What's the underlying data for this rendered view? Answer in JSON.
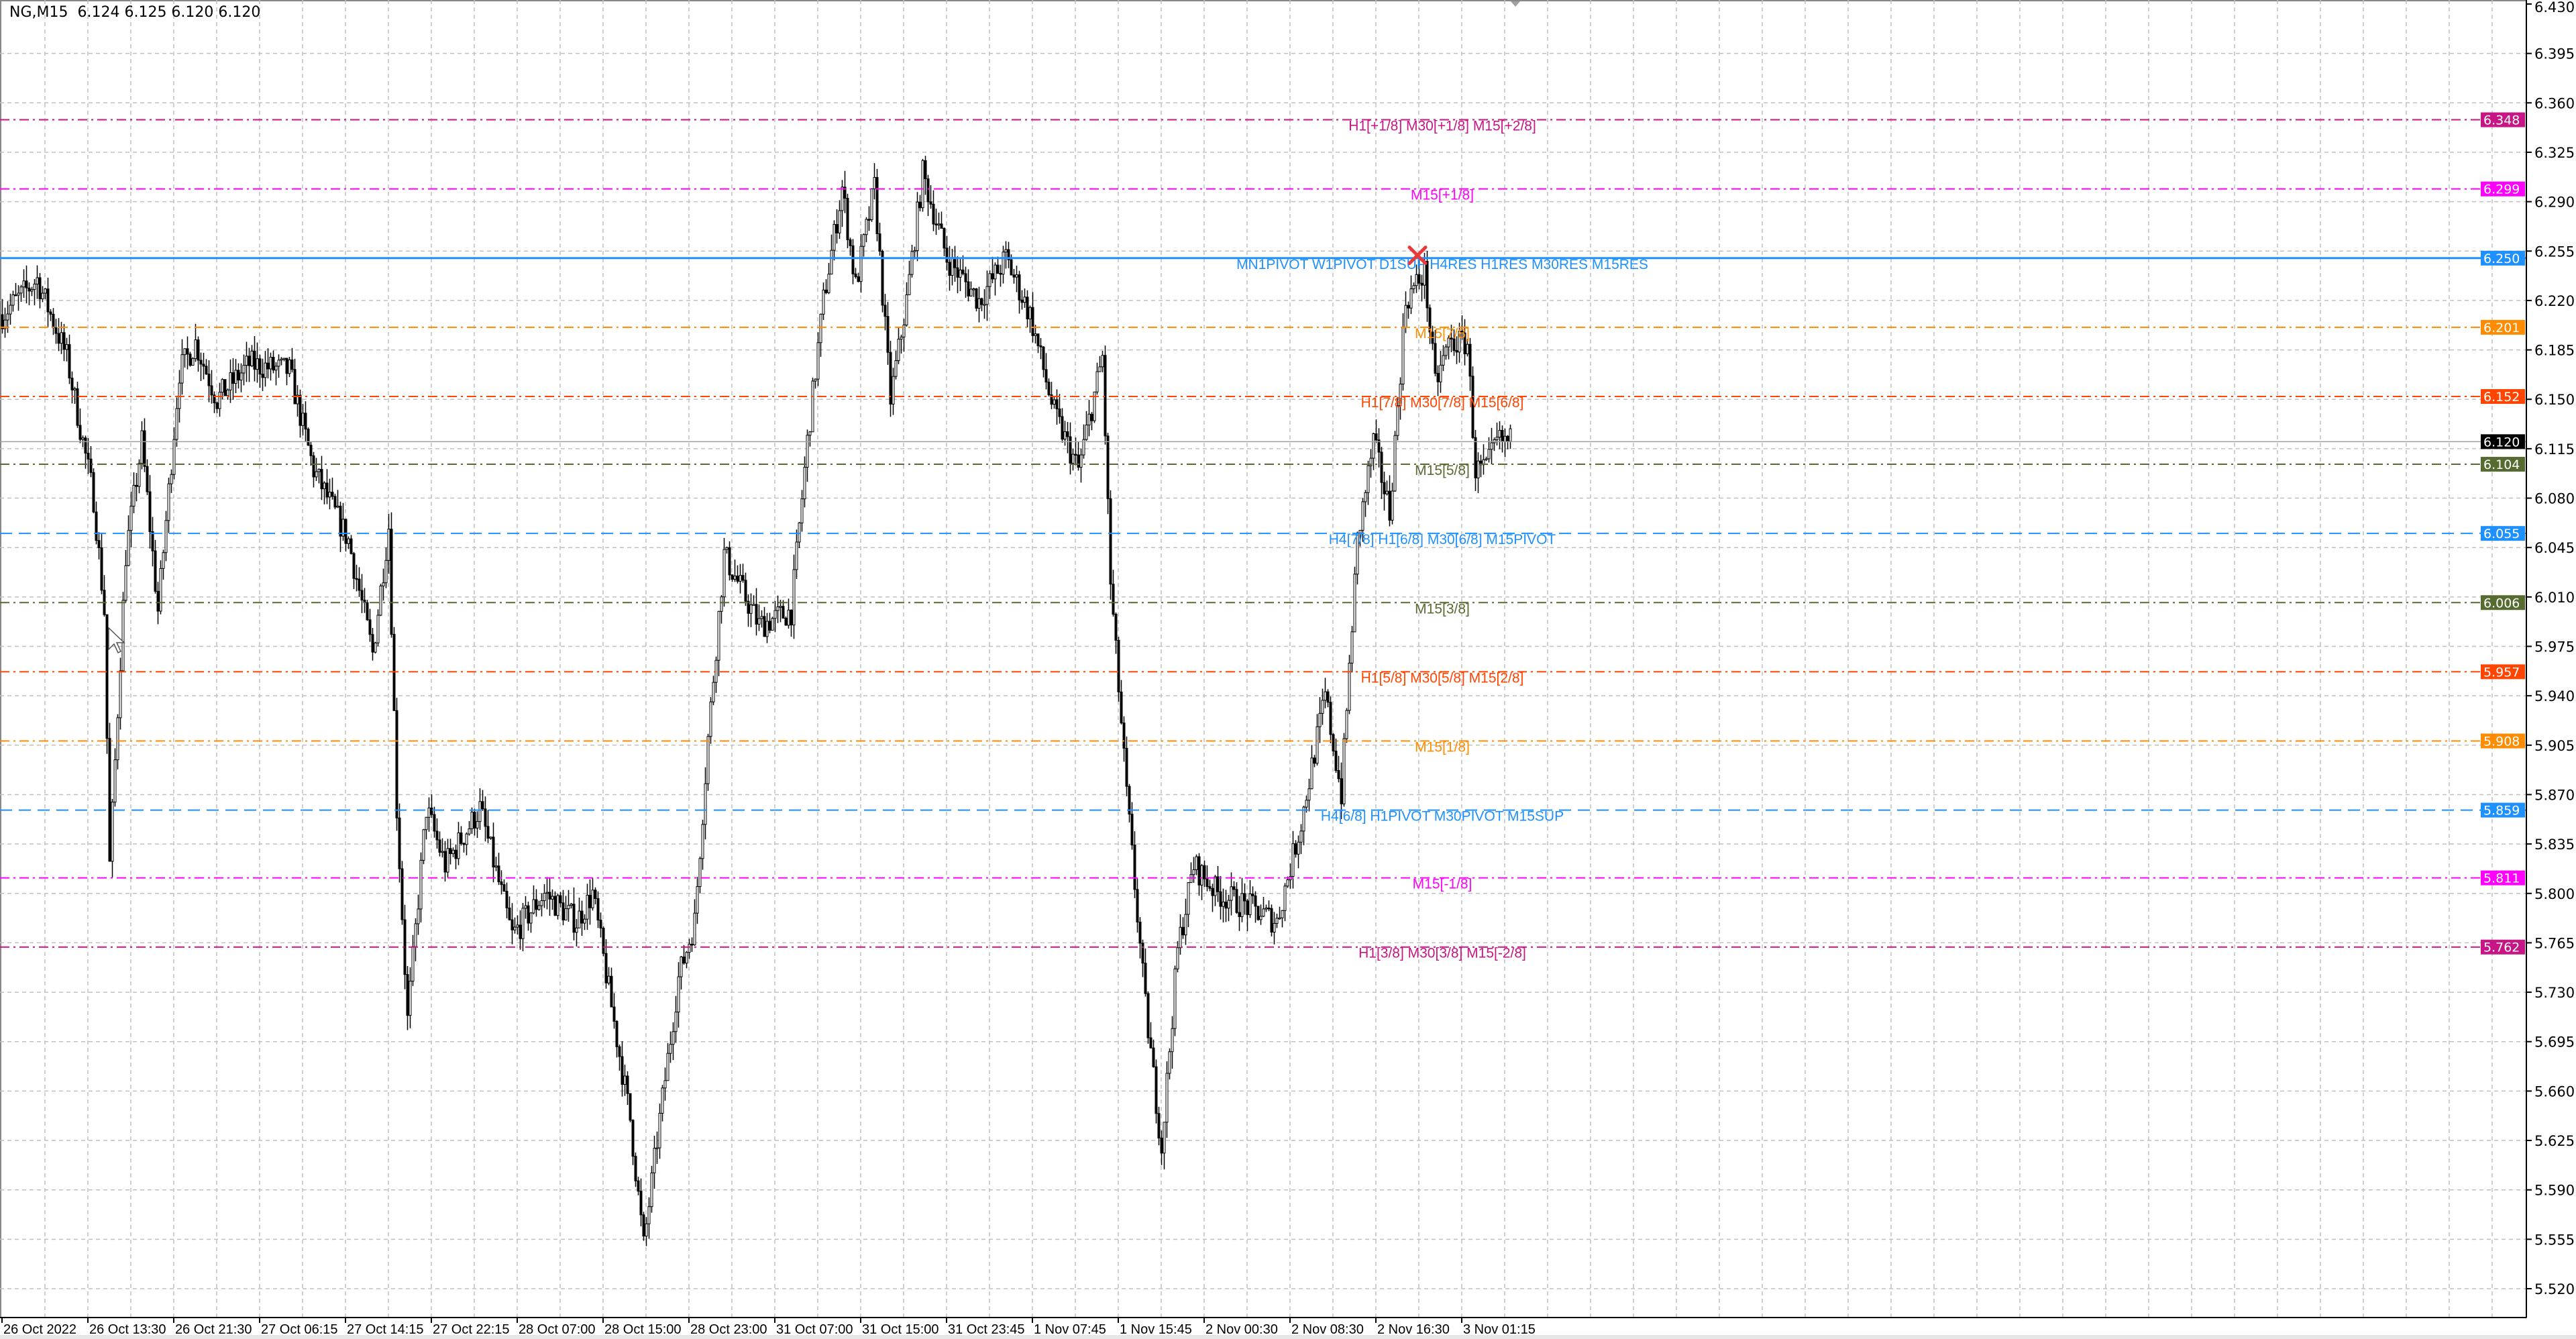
{
  "header": {
    "symbol": "NG,M15",
    "ohlc": "6.124 6.125 6.120 6.120"
  },
  "colors": {
    "background": "#ffffff",
    "grid": "#c0c0c0",
    "candle": "#000000",
    "axis": "#000000",
    "current_price_bg": "#000000",
    "marker": "#e8393b"
  },
  "chart_data": {
    "type": "candlestick",
    "timeframe": "M15",
    "ylim": [
      5.5,
      6.43
    ],
    "grid": true,
    "y_ticks": [
      "6.430",
      "6.395",
      "6.360",
      "6.325",
      "6.290",
      "6.255",
      "6.220",
      "6.185",
      "6.150",
      "6.115",
      "6.080",
      "6.045",
      "6.010",
      "5.975",
      "5.940",
      "5.905",
      "5.870",
      "5.835",
      "5.800",
      "5.765",
      "5.730",
      "5.695",
      "5.660",
      "5.625",
      "5.590",
      "5.555",
      "5.520"
    ],
    "x_ticks": [
      "26 Oct 2022",
      "26 Oct 13:30",
      "26 Oct 21:30",
      "27 Oct 06:15",
      "27 Oct 14:15",
      "27 Oct 22:15",
      "28 Oct 07:00",
      "28 Oct 15:00",
      "28 Oct 23:00",
      "31 Oct 07:00",
      "31 Oct 15:00",
      "31 Oct 23:45",
      "1 Nov 07:45",
      "1 Nov 15:45",
      "2 Nov 00:30",
      "2 Nov 08:30",
      "2 Nov 16:30",
      "3 Nov 01:15"
    ],
    "bars_per_x_tick": 32,
    "price_path": [
      [
        0,
        6.21
      ],
      [
        13,
        6.235
      ],
      [
        24,
        6.18
      ],
      [
        34,
        6.08
      ],
      [
        38,
        6.0
      ],
      [
        40,
        5.82
      ],
      [
        46,
        6.04
      ],
      [
        52,
        6.12
      ],
      [
        58,
        6.0
      ],
      [
        66,
        6.17
      ],
      [
        72,
        6.19
      ],
      [
        80,
        6.15
      ],
      [
        92,
        6.175
      ],
      [
        107,
        6.17
      ],
      [
        116,
        6.1
      ],
      [
        129,
        6.05
      ],
      [
        138,
        5.97
      ],
      [
        144,
        6.06
      ],
      [
        147,
        5.86
      ],
      [
        151,
        5.71
      ],
      [
        158,
        5.86
      ],
      [
        165,
        5.82
      ],
      [
        178,
        5.86
      ],
      [
        190,
        5.77
      ],
      [
        202,
        5.8
      ],
      [
        214,
        5.78
      ],
      [
        220,
        5.8
      ],
      [
        227,
        5.72
      ],
      [
        234,
        5.64
      ],
      [
        239,
        5.55
      ],
      [
        245,
        5.64
      ],
      [
        252,
        5.74
      ],
      [
        258,
        5.78
      ],
      [
        263,
        5.91
      ],
      [
        269,
        6.04
      ],
      [
        282,
        5.99
      ],
      [
        294,
        6.0
      ],
      [
        300,
        6.12
      ],
      [
        306,
        6.22
      ],
      [
        313,
        6.3
      ],
      [
        318,
        6.23
      ],
      [
        325,
        6.3
      ],
      [
        331,
        6.15
      ],
      [
        337,
        6.22
      ],
      [
        343,
        6.31
      ],
      [
        352,
        6.25
      ],
      [
        364,
        6.22
      ],
      [
        374,
        6.25
      ],
      [
        383,
        6.21
      ],
      [
        392,
        6.14
      ],
      [
        401,
        6.1
      ],
      [
        410,
        6.18
      ],
      [
        413,
        6.02
      ],
      [
        419,
        5.87
      ],
      [
        426,
        5.72
      ],
      [
        432,
        5.62
      ],
      [
        438,
        5.76
      ],
      [
        444,
        5.82
      ],
      [
        453,
        5.8
      ],
      [
        465,
        5.79
      ],
      [
        475,
        5.78
      ],
      [
        484,
        5.85
      ],
      [
        493,
        5.94
      ],
      [
        499,
        5.87
      ],
      [
        505,
        6.05
      ],
      [
        511,
        6.12
      ],
      [
        517,
        6.07
      ],
      [
        523,
        6.22
      ],
      [
        530,
        6.24
      ],
      [
        534,
        6.16
      ],
      [
        539,
        6.19
      ],
      [
        546,
        6.19
      ],
      [
        549,
        6.1
      ],
      [
        553,
        6.1
      ],
      [
        557,
        6.12
      ],
      [
        562,
        6.12
      ]
    ],
    "current_price": {
      "value": 6.12,
      "label": "6.120"
    },
    "levels": [
      {
        "price": 6.348,
        "label": "6.348",
        "text": "H1[+1/8] M30[+1/8] M15[+2/8]",
        "color": "#C71585",
        "style": "dashdot"
      },
      {
        "price": 6.299,
        "label": "6.299",
        "text": "M15[+1/8]",
        "color": "#FF00FF",
        "style": "dashdot"
      },
      {
        "price": 6.25,
        "label": "6.250",
        "text": "MN1PIVOT W1PIVOT D1SUP H4RES H1RES M30RES M15RES",
        "color": "#1E90FF",
        "style": "solid"
      },
      {
        "price": 6.201,
        "label": "6.201",
        "text": "M15[7/8]",
        "color": "#FF8C00",
        "style": "dashdot"
      },
      {
        "price": 6.152,
        "label": "6.152",
        "text": "H1[7/8] M30[7/8] M15[6/8]",
        "color": "#FF4500",
        "style": "dashdot"
      },
      {
        "price": 6.104,
        "label": "6.104",
        "text": "M15[5/8]",
        "color": "#556B2F",
        "style": "dashdot"
      },
      {
        "price": 6.055,
        "label": "6.055",
        "text": "H4[7/8] H1[6/8] M30[6/8] M15PIVOT",
        "color": "#1E90FF",
        "style": "dashed"
      },
      {
        "price": 6.006,
        "label": "6.006",
        "text": "M15[3/8]",
        "color": "#556B2F",
        "style": "dashdot"
      },
      {
        "price": 5.957,
        "label": "5.957",
        "text": "H1[5/8] M30[5/8] M15[2/8]",
        "color": "#FF4500",
        "style": "dashdot"
      },
      {
        "price": 5.908,
        "label": "5.908",
        "text": "M15[1/8]",
        "color": "#FF8C00",
        "style": "dashdot"
      },
      {
        "price": 5.859,
        "label": "5.859",
        "text": "H4[6/8] H1PIVOT M30PIVOT M15SUP",
        "color": "#1E90FF",
        "style": "dashed"
      },
      {
        "price": 5.811,
        "label": "5.811",
        "text": "M15[-1/8]",
        "color": "#FF00FF",
        "style": "dashdot"
      },
      {
        "price": 5.762,
        "label": "5.762",
        "text": "H1[3/8] M30[3/8] M15[-2/8]",
        "color": "#C71585",
        "style": "dashdot"
      }
    ],
    "marker": {
      "icon": "red-x-icon",
      "price": 6.252
    }
  }
}
